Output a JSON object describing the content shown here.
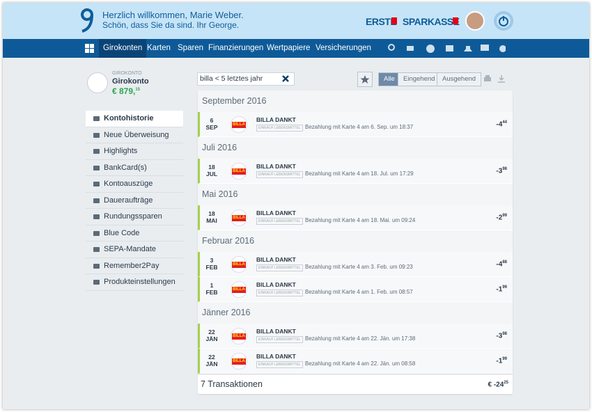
{
  "header": {
    "greeting": "Herzlich willkommen, Marie Weber.",
    "subtitle": "Schön, dass Sie da sind. Ihr George.",
    "brand": "ERSTE",
    "brand2": "SPARKASSE"
  },
  "nav": {
    "items": [
      "Girokonten",
      "Karten",
      "Sparen",
      "Finanzierungen",
      "Wertpapiere",
      "Versicherungen"
    ]
  },
  "account": {
    "label": "GIROKONTO",
    "name": "Girokonto",
    "balance": "€ 879,",
    "balance_cents": "15"
  },
  "sidebar": {
    "items": [
      "Kontohistorie",
      "Neue Überweisung",
      "Highlights",
      "BankCard(s)",
      "Kontoauszüge",
      "Daueraufträge",
      "Rundungssparen",
      "Blue Code",
      "SEPA-Mandate",
      "Remember2Pay",
      "Produkteinstellungen"
    ]
  },
  "search": {
    "query": "billa < 5 letztes jahr"
  },
  "filters": [
    "Alle",
    "Eingehend",
    "Ausgehend"
  ],
  "groups": [
    {
      "month": "September 2016",
      "transactions": [
        {
          "day": "6",
          "month": "SEP",
          "logo": "BILLA",
          "merchant": "BILLA DANKT",
          "category": "EINKAUF LEBENSMITTEL",
          "description": "Bezahlung mit Karte 4 am 6. Sep. um 18:37",
          "amount": "-4",
          "cents": "44"
        }
      ]
    },
    {
      "month": "Juli 2016",
      "transactions": [
        {
          "day": "18",
          "month": "JUL",
          "logo": "BILLA",
          "merchant": "BILLA DANKT",
          "category": "EINKAUF LEBENSMITTEL",
          "description": "Bezahlung mit Karte 4 am 18. Jul. um 17:29",
          "amount": "-3",
          "cents": "98"
        }
      ]
    },
    {
      "month": "Mai 2016",
      "transactions": [
        {
          "day": "18",
          "month": "MAI",
          "logo": "BILLA",
          "merchant": "BILLA DANKT",
          "category": "EINKAUF LEBENSMITTEL",
          "description": "Bezahlung mit Karte 4 am 18. Mai. um 09:24",
          "amount": "-2",
          "cents": "99"
        }
      ]
    },
    {
      "month": "Februar 2016",
      "transactions": [
        {
          "day": "3",
          "month": "FEB",
          "logo": "BILLA",
          "merchant": "BILLA DANKT",
          "category": "EINKAUF LEBENSMITTEL",
          "description": "Bezahlung mit Karte 4 am 3. Feb. um 09:23",
          "amount": "-4",
          "cents": "88"
        },
        {
          "day": "1",
          "month": "FEB",
          "logo": "BILLA",
          "merchant": "BILLA DANKT",
          "category": "EINKAUF LEBENSMITTEL",
          "description": "Bezahlung mit Karte 4 am 1. Feb. um 08:57",
          "amount": "-1",
          "cents": "99"
        }
      ]
    },
    {
      "month": "Jänner 2016",
      "transactions": [
        {
          "day": "22",
          "month": "JÄN",
          "logo": "BILLA",
          "merchant": "BILLA DANKT",
          "category": "EINKAUF LEBENSMITTEL",
          "description": "Bezahlung mit Karte 4 am 22. Jän. um 17:38",
          "amount": "-3",
          "cents": "98"
        },
        {
          "day": "22",
          "month": "JÄN",
          "logo": "BILLA",
          "merchant": "BILLA DANKT",
          "category": "EINKAUF LEBENSMITTEL",
          "description": "Bezahlung mit Karte 4 am 22. Jän. um 08:58",
          "amount": "-1",
          "cents": "99"
        }
      ]
    }
  ],
  "footer": {
    "count": "7 Transaktionen",
    "total": "€ -24",
    "total_cents": "25"
  }
}
